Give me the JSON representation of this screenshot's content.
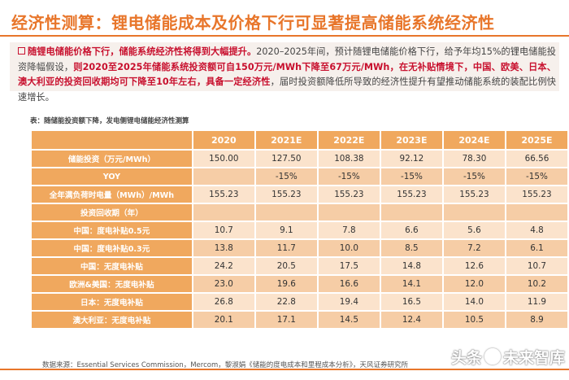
{
  "title": "经济性测算：锂电储能成本及价格下行可显著提高储能系统经济性",
  "intro": {
    "lead": "随锂电储能价格下行，储能系统经济性将得到大幅提升。",
    "part2": "2020–2025年间，预计随锂电储能价格下行，给予年均15%的锂电储能投资降幅假设，",
    "highlight2": "则2020至2025年储能系统投资额可自150万元/MWh下降至67万元/MWh，在无补贴情境下，中国、欧美、日本、澳大利亚的投资回收期均可下降至10年左右，具备一定经济性",
    "part3": "，届时投资额降低所导致的经济性提升有望推动储能系统的装配比例快速增长。"
  },
  "table": {
    "caption": "表：随储能投资额下降，发电侧锂电储能经济性测算",
    "columns": [
      "2020",
      "2021E",
      "2022E",
      "2023E",
      "2024E",
      "2025E"
    ],
    "rows": [
      {
        "label": "储能投资（万元/MWh）",
        "values": [
          "150.00",
          "127.50",
          "108.38",
          "92.12",
          "78.30",
          "66.56"
        ]
      },
      {
        "label": "YOY",
        "values": [
          "",
          "-15%",
          "-15%",
          "-15%",
          "-15%",
          "-15%"
        ]
      },
      {
        "label": "全年满负荷时电量（MWh）/MWh",
        "values": [
          "155.23",
          "155.23",
          "155.23",
          "155.23",
          "155.23",
          "155.23"
        ]
      },
      {
        "label": "投资回收期（年）",
        "values": [
          "",
          "",
          "",
          "",
          "",
          ""
        ]
      },
      {
        "label": "中国：度电补贴0.5元",
        "values": [
          "10.7",
          "9.1",
          "7.8",
          "6.6",
          "5.6",
          "4.8"
        ]
      },
      {
        "label": "中国：度电补贴0.3元",
        "values": [
          "13.8",
          "11.7",
          "10.0",
          "8.5",
          "7.2",
          "6.1"
        ]
      },
      {
        "label": "中国：无度电补贴",
        "values": [
          "24.2",
          "20.5",
          "17.5",
          "14.8",
          "12.6",
          "10.7"
        ]
      },
      {
        "label": "欧洲&美国：无度电补贴",
        "values": [
          "23.0",
          "19.6",
          "16.6",
          "14.1",
          "12.0",
          "10.2"
        ]
      },
      {
        "label": "日本：无度电补贴",
        "values": [
          "26.8",
          "22.8",
          "19.4",
          "16.5",
          "14.0",
          "11.9"
        ]
      },
      {
        "label": "澳大利亚：无度电补贴",
        "values": [
          "20.1",
          "17.1",
          "14.5",
          "12.4",
          "10.5",
          "8.9"
        ]
      }
    ]
  },
  "source": "数据来源：Essential Services Commission，Mercom，黎淑娟《储能的度电成本和里程成本分析》，天风证券研究所",
  "watermark": {
    "prefix": "头条",
    "suffix": "未来智库"
  },
  "colors": {
    "accent": "#e8762b",
    "header_fill": "#f0a85e",
    "cell_light": "#fbe3cc",
    "cell_dark": "#f6cda6",
    "highlight_text": "#c8102e"
  }
}
